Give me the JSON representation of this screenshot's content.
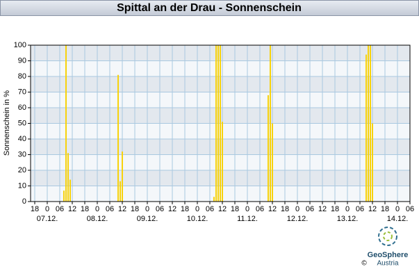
{
  "chart_data": {
    "type": "bar",
    "title": "Spittal an der Drau - Sonnenschein",
    "y_label": "Sonnenschein in %",
    "x": [
      8,
      9,
      10,
      11,
      34,
      35,
      36,
      80,
      81,
      82,
      83,
      84,
      106,
      107,
      108,
      153,
      154,
      155,
      156
    ],
    "values": [
      7,
      100,
      31,
      14,
      81,
      13,
      32,
      3,
      100,
      100,
      100,
      51,
      68,
      100,
      50,
      94,
      100,
      100,
      50
    ],
    "color": "#f7d20c",
    "xlim": [
      -8,
      174
    ],
    "xticks": [
      {
        "value": -6,
        "label": "18"
      },
      0,
      {
        "value": 6,
        "label": "06"
      },
      12,
      18,
      {
        "value": 24,
        "label": "0"
      },
      {
        "value": 30,
        "label": "06"
      },
      {
        "value": 36,
        "label": "12"
      },
      {
        "value": 42,
        "label": "18"
      },
      {
        "value": 48,
        "label": "0"
      },
      {
        "value": 54,
        "label": "06"
      },
      {
        "value": 60,
        "label": "12"
      },
      {
        "value": 66,
        "label": "18"
      },
      {
        "value": 72,
        "label": "0"
      },
      {
        "value": 78,
        "label": "06"
      },
      {
        "value": 84,
        "label": "12"
      },
      {
        "value": 90,
        "label": "18"
      },
      {
        "value": 96,
        "label": "0"
      },
      {
        "value": 102,
        "label": "06"
      },
      {
        "value": 108,
        "label": "12"
      },
      {
        "value": 114,
        "label": "18"
      },
      {
        "value": 120,
        "label": "0"
      },
      {
        "value": 126,
        "label": "06"
      },
      {
        "value": 132,
        "label": "12"
      },
      {
        "value": 138,
        "label": "18"
      },
      {
        "value": 144,
        "label": "0"
      },
      {
        "value": 150,
        "label": "06"
      },
      {
        "value": 156,
        "label": "12"
      },
      {
        "value": 162,
        "label": "18"
      },
      {
        "value": 168,
        "label": "0"
      },
      {
        "value": 174,
        "label": "06"
      }
    ],
    "date_labels": [
      {
        "value": 0,
        "label": "07.12."
      },
      {
        "value": 24,
        "label": "08.12."
      },
      {
        "value": 48,
        "label": "09.12."
      },
      {
        "value": 72,
        "label": "10.12."
      },
      {
        "value": 96,
        "label": "11.12."
      },
      {
        "value": 120,
        "label": "12.12."
      },
      {
        "value": 144,
        "label": "13.12."
      },
      {
        "value": 168,
        "label": "14.12."
      }
    ],
    "ylim": [
      0,
      100
    ],
    "yticks": [
      0,
      10,
      20,
      30,
      40,
      50,
      60,
      70,
      80,
      90,
      100
    ],
    "grid": true,
    "logo": {
      "name": "GeoSphere",
      "sub": "Austria",
      "copyright": "©"
    }
  }
}
